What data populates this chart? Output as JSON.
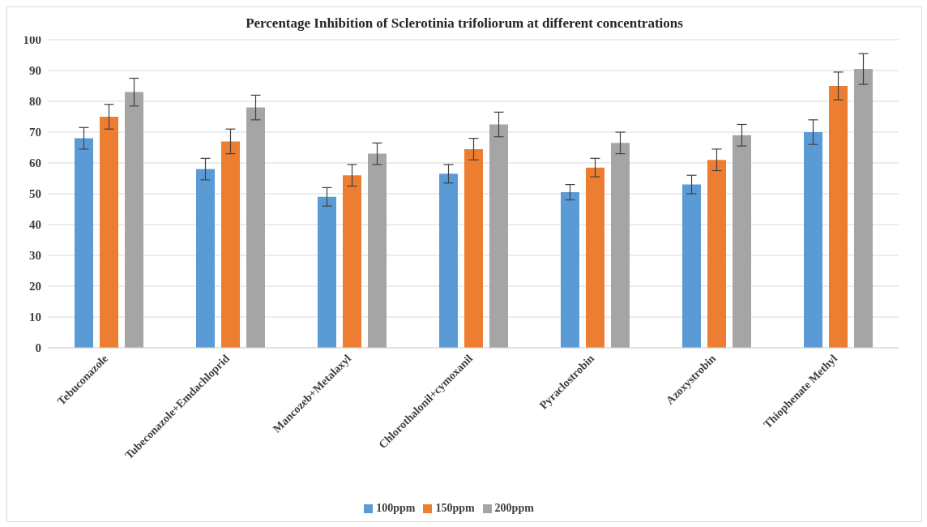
{
  "chart_data": {
    "type": "bar",
    "title": "Percentage Inhibition of Sclerotinia trifoliorum at different concentrations",
    "categories": [
      "Tebuconazole",
      "Tubeconazole+Emdachloprid",
      "Mancozeb+Metalaxyl",
      "Chlorothalonil+cymoxanil",
      "Pyraclostrobin",
      "Azoxystrobin",
      "Thiophenate Methyl"
    ],
    "series": [
      {
        "name": "100ppm",
        "color": "#5b9bd5",
        "values": [
          68,
          58,
          49,
          56.5,
          50.5,
          53,
          70
        ],
        "errors": [
          3.5,
          3.5,
          3,
          3,
          2.5,
          3,
          4
        ]
      },
      {
        "name": "150ppm",
        "color": "#ed7d31",
        "values": [
          75,
          67,
          56,
          64.5,
          58.5,
          61,
          85
        ],
        "errors": [
          4,
          4,
          3.5,
          3.5,
          3,
          3.5,
          4.5
        ]
      },
      {
        "name": "200ppm",
        "color": "#a5a5a5",
        "values": [
          83,
          78,
          63,
          72.5,
          66.5,
          69,
          90.5
        ],
        "errors": [
          4.5,
          4,
          3.5,
          4,
          3.5,
          3.5,
          5
        ]
      }
    ],
    "ylim": [
      0,
      100
    ],
    "yticks": [
      0,
      10,
      20,
      30,
      40,
      50,
      60,
      70,
      80,
      90,
      100
    ],
    "grid": "y",
    "legend": "bottom"
  }
}
